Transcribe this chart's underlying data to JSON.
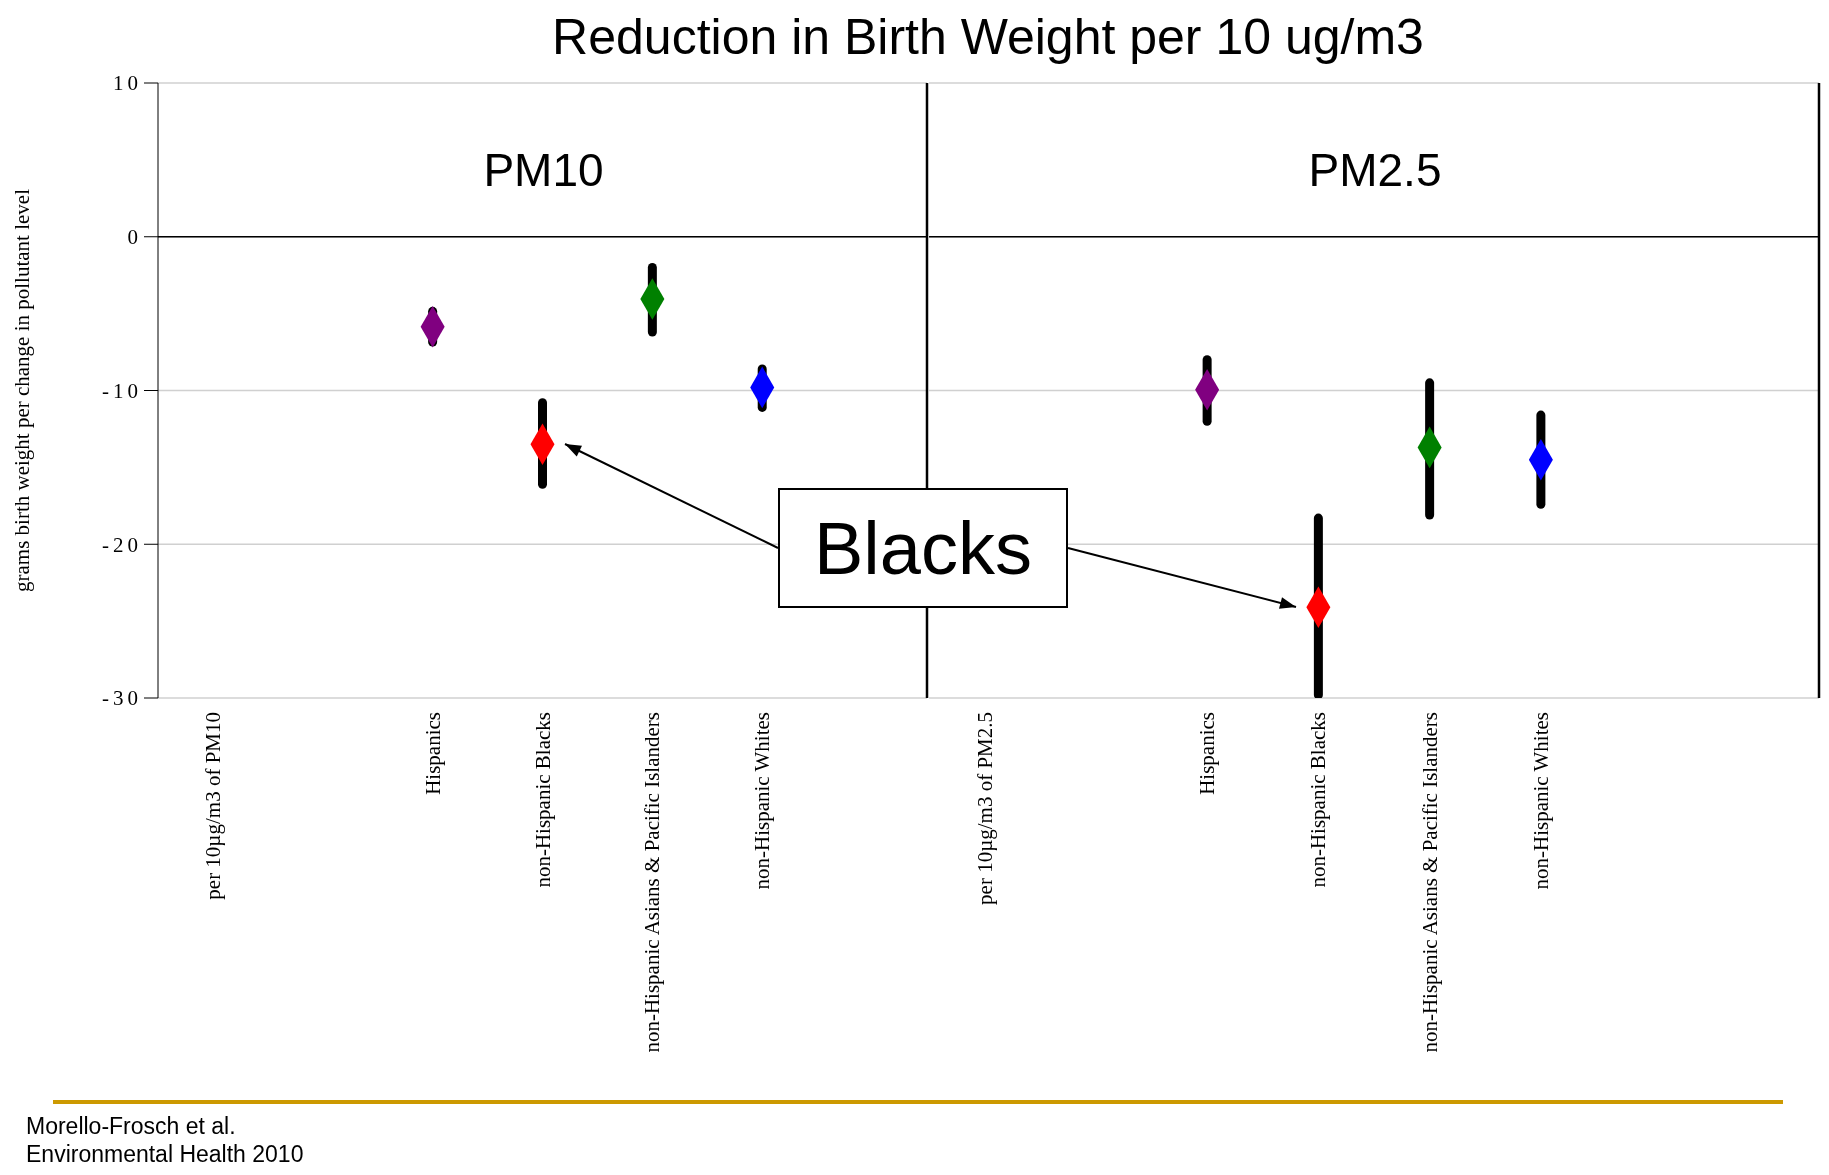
{
  "chart_data": [
    {
      "type": "scatter",
      "title": "Reduction in Birth Weight per 10 ug/m3",
      "ylabel": "grams birth weight per change in pollutant level",
      "categories": [
        "per 10µg/m3 of PM10",
        null,
        "Hispanics",
        "non-Hispanic Blacks",
        "non-Hispanic Asians & Pacific Islanders",
        "non-Hispanic Whites",
        null
      ],
      "series": [
        {
          "color": "#800080",
          "values": [
            null,
            null,
            -5.85,
            null,
            null,
            null,
            null
          ],
          "errors": [
            null,
            null,
            [
              -6.85,
              -4.85
            ],
            null,
            null,
            null,
            null
          ]
        },
        {
          "color": "#ff0000",
          "values": [
            null,
            null,
            null,
            -13.5,
            null,
            null,
            null
          ],
          "errors": [
            null,
            null,
            null,
            [
              -16.1,
              -10.8
            ],
            null,
            null,
            null
          ]
        },
        {
          "color": "#008000",
          "values": [
            null,
            null,
            null,
            null,
            -4.05,
            null,
            null
          ],
          "errors": [
            null,
            null,
            null,
            null,
            [
              -6.2,
              -2.0
            ],
            null,
            null
          ]
        },
        {
          "color": "#0000ff",
          "values": [
            null,
            null,
            null,
            null,
            null,
            -9.8,
            null
          ],
          "errors": [
            null,
            null,
            null,
            null,
            null,
            [
              -11.1,
              -8.6
            ],
            null
          ]
        }
      ],
      "marker": "diamond",
      "ylim": [
        -30,
        10
      ],
      "yticks": [
        -30,
        -20,
        -10,
        0,
        10
      ],
      "grid": "y",
      "ref_lines": [
        {
          "axis": "y",
          "value": 0,
          "color": "#000000"
        }
      ],
      "annotations": [
        "PM10",
        "Blacks",
        "Morello-Frosch et al.",
        "Environmental Health 2010"
      ]
    },
    {
      "type": "scatter",
      "categories": [
        "per 10µg/m3 of PM2.5",
        null,
        "Hispanics",
        "non-Hispanic Blacks",
        "non-Hispanic Asians & Pacific Islanders",
        "non-Hispanic Whites",
        null,
        null
      ],
      "series": [
        {
          "color": "#800080",
          "values": [
            null,
            null,
            -9.95,
            null,
            null,
            null,
            null,
            null
          ],
          "errors": [
            null,
            null,
            [
              -12.0,
              -8.0
            ],
            null,
            null,
            null,
            null,
            null
          ]
        },
        {
          "color": "#ff0000",
          "values": [
            null,
            null,
            null,
            -24.1,
            null,
            null,
            null,
            null
          ],
          "errors": [
            null,
            null,
            null,
            [
              -29.8,
              -18.3
            ],
            null,
            null,
            null,
            null
          ]
        },
        {
          "color": "#008000",
          "values": [
            null,
            null,
            null,
            null,
            -13.7,
            null,
            null,
            null
          ],
          "errors": [
            null,
            null,
            null,
            null,
            [
              -18.1,
              -9.5
            ],
            null,
            null,
            null
          ]
        },
        {
          "color": "#0000ff",
          "values": [
            null,
            null,
            null,
            null,
            null,
            -14.5,
            null,
            null
          ],
          "errors": [
            null,
            null,
            null,
            null,
            null,
            [
              -17.4,
              -11.6
            ],
            null,
            null
          ]
        }
      ],
      "marker": "diamond",
      "ylim": [
        -30,
        10
      ],
      "yticks": [
        -30,
        -20,
        -10,
        0,
        10
      ],
      "grid": "y",
      "tick_labels": "x",
      "ref_lines": [
        {
          "axis": "y",
          "value": 0,
          "color": "#000000"
        }
      ],
      "annotations": [
        "PM2.5"
      ]
    }
  ]
}
